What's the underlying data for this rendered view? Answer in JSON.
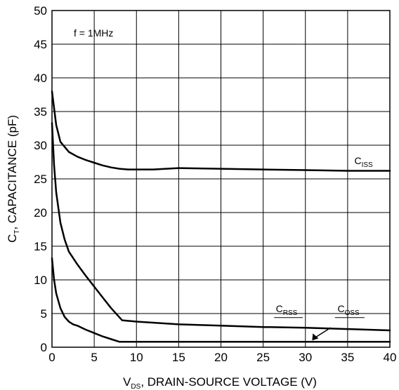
{
  "chart_data": {
    "type": "line",
    "xlabel": {
      "main": "V",
      "sub": "DS",
      "rest": ", DRAIN-SOURCE VOLTAGE (V)"
    },
    "ylabel": {
      "main": "C",
      "sub": "T",
      "rest": ", CAPACITANCE (pF)"
    },
    "xlim": [
      0,
      40
    ],
    "ylim": [
      0,
      50
    ],
    "xticks": [
      "0",
      "5",
      "10",
      "15",
      "20",
      "25",
      "30",
      "35",
      "40"
    ],
    "yticks": [
      "0",
      "5",
      "10",
      "15",
      "20",
      "25",
      "30",
      "35",
      "40",
      "45",
      "50"
    ],
    "grid": true,
    "annotation": "f = 1MHz",
    "series": [
      {
        "name": {
          "main": "C",
          "sub": "ISS"
        },
        "x": [
          0,
          0.5,
          1,
          2,
          3,
          4,
          5,
          6,
          7,
          8,
          9,
          10,
          12,
          15,
          20,
          25,
          30,
          35,
          40
        ],
        "y": [
          38,
          33,
          30.5,
          29,
          28.3,
          27.8,
          27.4,
          27,
          26.7,
          26.5,
          26.4,
          26.4,
          26.4,
          26.6,
          26.5,
          26.4,
          26.3,
          26.2,
          26.2
        ]
      },
      {
        "name": {
          "main": "C",
          "sub": "OSS"
        },
        "x": [
          0,
          0.25,
          0.5,
          1,
          1.5,
          2,
          3,
          4,
          5,
          6,
          7,
          8.3,
          10,
          15,
          20,
          25,
          30,
          35,
          40
        ],
        "y": [
          33.3,
          27,
          23,
          18.5,
          16,
          14.2,
          12.3,
          10.6,
          9,
          7.4,
          5.8,
          4,
          3.8,
          3.4,
          3.2,
          3,
          2.9,
          2.7,
          2.5
        ]
      },
      {
        "name": {
          "main": "C",
          "sub": "RSS"
        },
        "x": [
          0,
          0.25,
          0.5,
          1,
          1.5,
          2,
          2.5,
          3,
          4,
          5,
          6,
          7,
          8,
          10,
          20,
          30,
          40
        ],
        "y": [
          13.2,
          10,
          8,
          5.8,
          4.5,
          3.8,
          3.4,
          3.2,
          2.6,
          2.1,
          1.6,
          1.2,
          0.8,
          0.8,
          0.8,
          0.8,
          0.8
        ]
      }
    ]
  }
}
